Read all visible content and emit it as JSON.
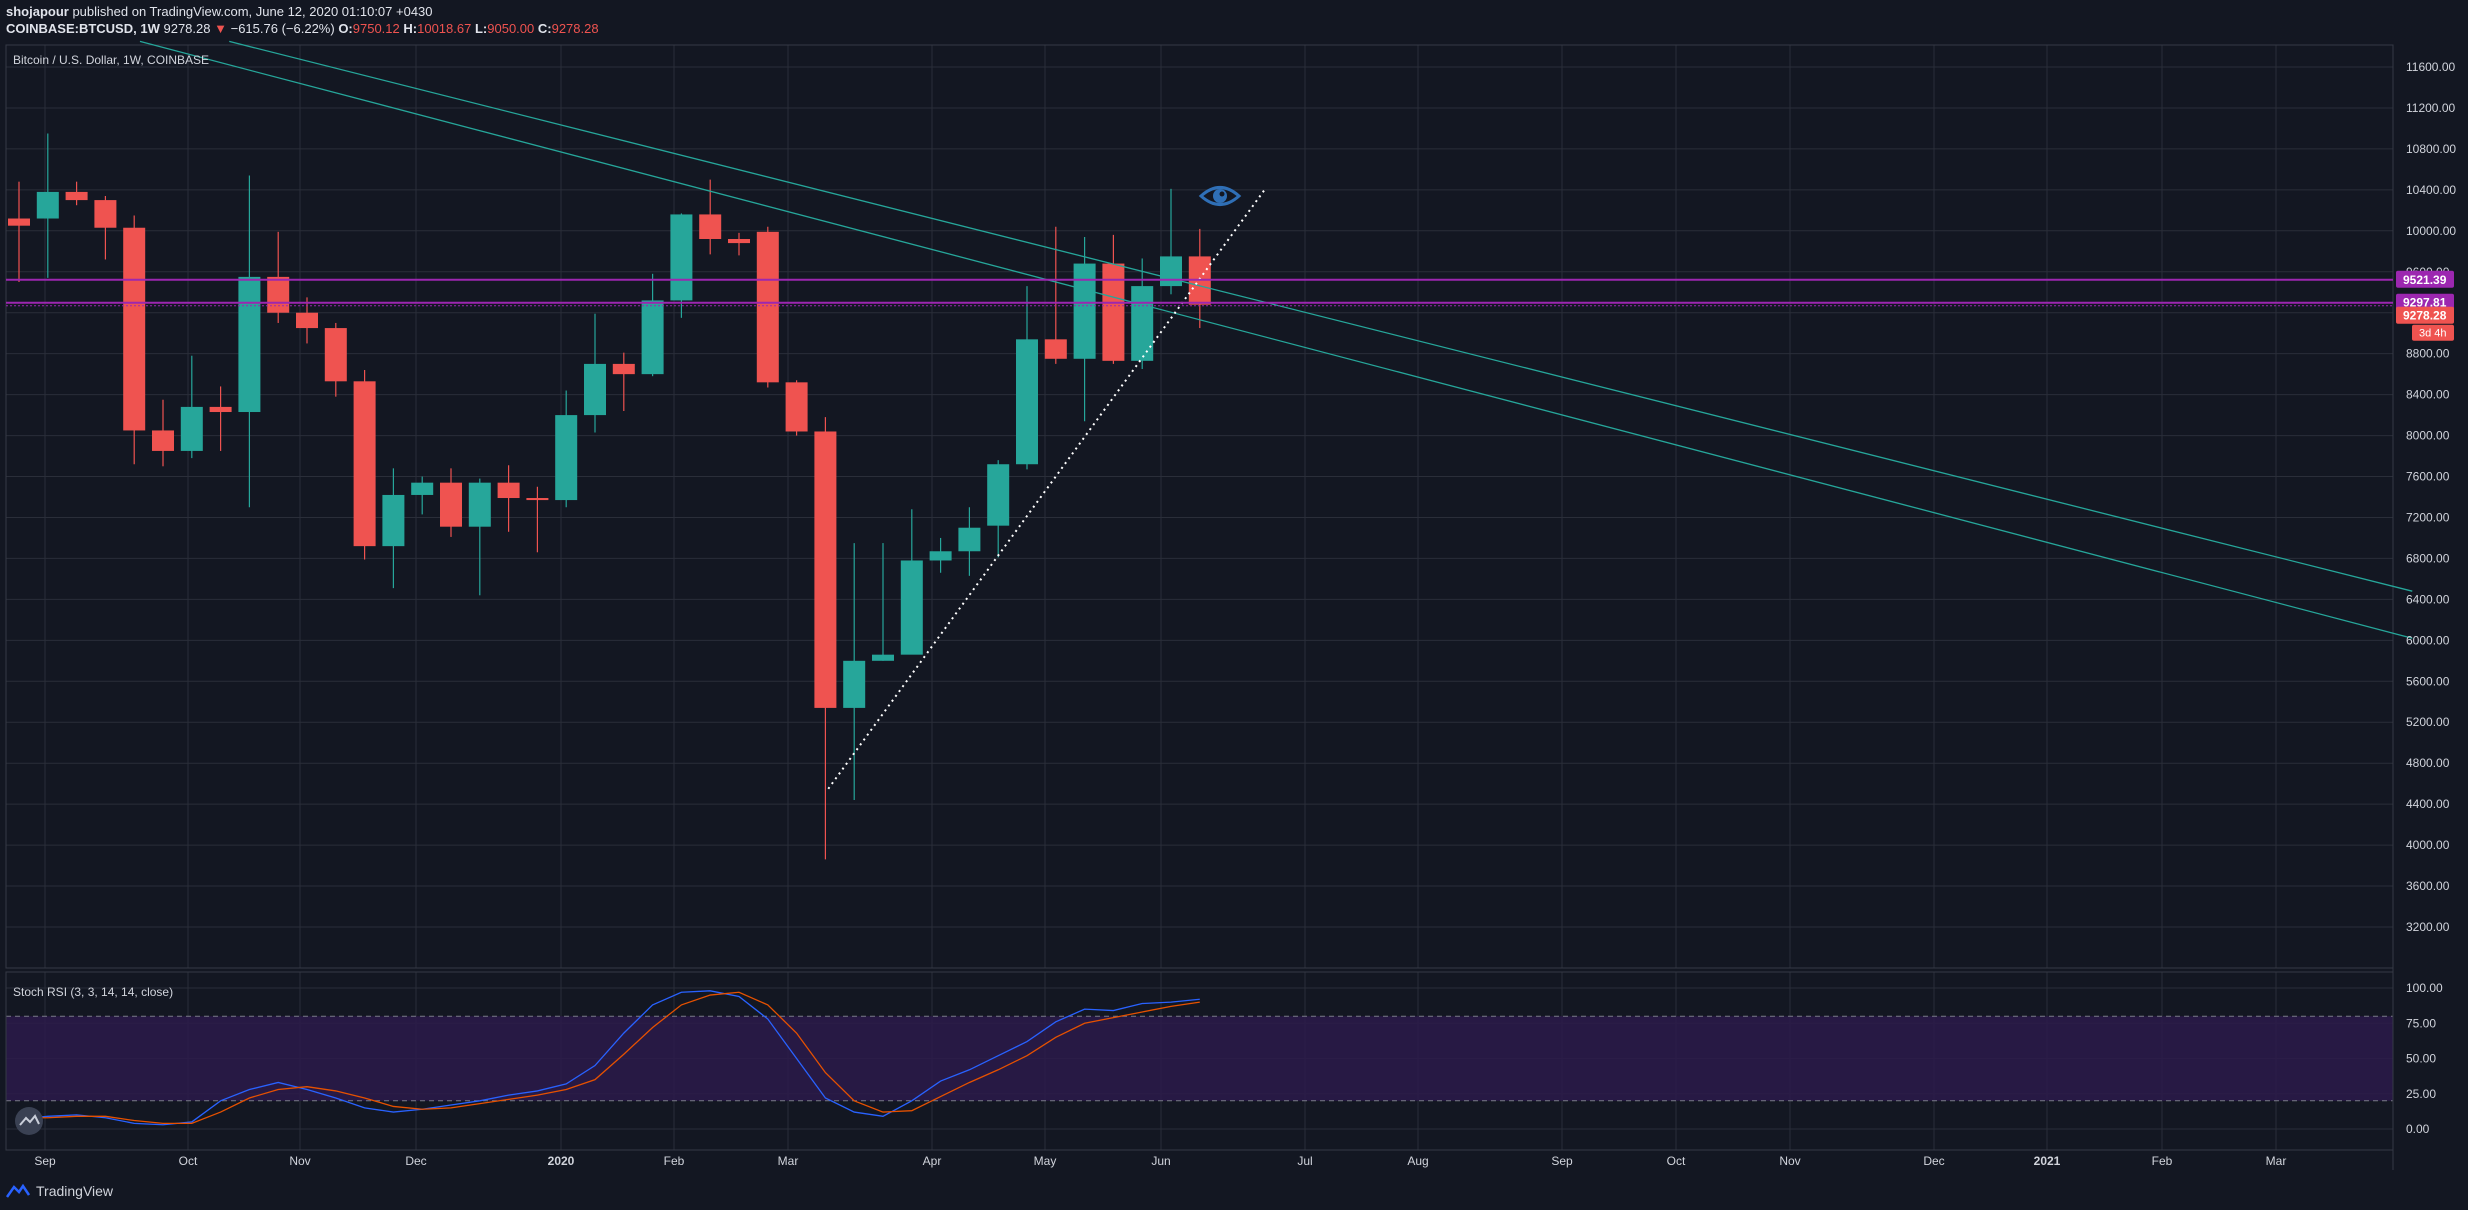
{
  "header": {
    "author": "shojapour",
    "published_text": " published on TradingView.com, June 12, 2020 01:10:07 +0430",
    "symbol": "COINBASE:BTCUSD",
    "interval": ", 1W",
    "last": "9278.28",
    "change_arrow": "▼",
    "change": "−615.76 (−6.22%)",
    "o_label": "O:",
    "o_value": "9750.12",
    "h_label": "H:",
    "h_value": "10018.67",
    "l_label": "L:",
    "l_value": "9050.00",
    "c_label": "C:",
    "c_value": "9278.28"
  },
  "footer": {
    "brand": "TradingView"
  },
  "colors": {
    "background": "#131722",
    "grid": "#2a2e39",
    "bull": "#26a69a",
    "bear": "#ef5350",
    "trendline": "#26a69a",
    "level": "#9c27b0",
    "rsi_k": "#2962ff",
    "rsi_d": "#e65100",
    "rsi_band": "#2b1a4a",
    "axis_text": "#d1d4dc"
  },
  "chart_data": [
    {
      "type": "candlestick",
      "title": "Bitcoin / U.S. Dollar, 1W, COINBASE",
      "x_labels": [
        "Sep",
        "Oct",
        "Nov",
        "Dec",
        "2020",
        "Feb",
        "Mar",
        "Apr",
        "May",
        "Jun",
        "Jul",
        "Aug",
        "Sep",
        "Oct",
        "Nov",
        "Dec",
        "2021",
        "Feb",
        "Mar"
      ],
      "y_ticks": [
        3200,
        3600,
        4000,
        4400,
        4800,
        5200,
        5600,
        6000,
        6400,
        6800,
        7200,
        7600,
        8000,
        8400,
        8800,
        9200,
        9600,
        10000,
        10400,
        10800,
        11200,
        11600
      ],
      "ylim": [
        3150,
        11750
      ],
      "candles": [
        {
          "o": 10120,
          "h": 10480,
          "l": 9500,
          "c": 10050
        },
        {
          "o": 10120,
          "h": 10950,
          "l": 9540,
          "c": 10380
        },
        {
          "o": 10380,
          "h": 10480,
          "l": 10250,
          "c": 10300
        },
        {
          "o": 10300,
          "h": 10340,
          "l": 9720,
          "c": 10030
        },
        {
          "o": 10030,
          "h": 10150,
          "l": 7720,
          "c": 8050
        },
        {
          "o": 8050,
          "h": 8350,
          "l": 7700,
          "c": 7850
        },
        {
          "o": 7850,
          "h": 8780,
          "l": 7780,
          "c": 8280
        },
        {
          "o": 8280,
          "h": 8480,
          "l": 7850,
          "c": 8230
        },
        {
          "o": 8230,
          "h": 10540,
          "l": 7300,
          "c": 9550
        },
        {
          "o": 9550,
          "h": 9990,
          "l": 9100,
          "c": 9200
        },
        {
          "o": 9200,
          "h": 9350,
          "l": 8900,
          "c": 9050
        },
        {
          "o": 9050,
          "h": 9100,
          "l": 8380,
          "c": 8530
        },
        {
          "o": 8530,
          "h": 8640,
          "l": 6790,
          "c": 6920
        },
        {
          "o": 6920,
          "h": 7680,
          "l": 6510,
          "c": 7420
        },
        {
          "o": 7420,
          "h": 7600,
          "l": 7230,
          "c": 7540
        },
        {
          "o": 7540,
          "h": 7680,
          "l": 7010,
          "c": 7110
        },
        {
          "o": 7110,
          "h": 7580,
          "l": 6440,
          "c": 7540
        },
        {
          "o": 7540,
          "h": 7710,
          "l": 7060,
          "c": 7390
        },
        {
          "o": 7390,
          "h": 7500,
          "l": 6860,
          "c": 7370
        },
        {
          "o": 7370,
          "h": 8440,
          "l": 7300,
          "c": 8200
        },
        {
          "o": 8200,
          "h": 9190,
          "l": 8030,
          "c": 8700
        },
        {
          "o": 8700,
          "h": 8810,
          "l": 8240,
          "c": 8600
        },
        {
          "o": 8600,
          "h": 9580,
          "l": 8580,
          "c": 9320
        },
        {
          "o": 9320,
          "h": 10170,
          "l": 9150,
          "c": 10160
        },
        {
          "o": 10160,
          "h": 10500,
          "l": 9770,
          "c": 9920
        },
        {
          "o": 9920,
          "h": 9980,
          "l": 9760,
          "c": 9880
        },
        {
          "o": 9990,
          "h": 10040,
          "l": 8470,
          "c": 8520
        },
        {
          "o": 8520,
          "h": 8540,
          "l": 8000,
          "c": 8040
        },
        {
          "o": 8040,
          "h": 8180,
          "l": 3860,
          "c": 5340
        },
        {
          "o": 5340,
          "h": 6950,
          "l": 4440,
          "c": 5800
        },
        {
          "o": 5800,
          "h": 6950,
          "l": 5800,
          "c": 5860
        },
        {
          "o": 5860,
          "h": 7280,
          "l": 5890,
          "c": 6780
        },
        {
          "o": 6780,
          "h": 7000,
          "l": 6660,
          "c": 6870
        },
        {
          "o": 6870,
          "h": 7300,
          "l": 6630,
          "c": 7100
        },
        {
          "o": 7120,
          "h": 7760,
          "l": 6810,
          "c": 7720
        },
        {
          "o": 7720,
          "h": 9460,
          "l": 7670,
          "c": 8940
        },
        {
          "o": 8940,
          "h": 10040,
          "l": 8700,
          "c": 8750
        },
        {
          "o": 8750,
          "h": 9940,
          "l": 8140,
          "c": 9680
        },
        {
          "o": 9680,
          "h": 9960,
          "l": 8700,
          "c": 8730
        },
        {
          "o": 8730,
          "h": 9730,
          "l": 8650,
          "c": 9460
        },
        {
          "o": 9460,
          "h": 10410,
          "l": 9380,
          "c": 9750
        },
        {
          "o": 9750,
          "h": 10018.67,
          "l": 9050,
          "c": 9278.28
        }
      ],
      "trendlines": [
        {
          "name": "upper-resistance",
          "from": {
            "bar": 7.3,
            "price": 11850
          },
          "to": {
            "bar": 83.1,
            "price": 6480
          }
        },
        {
          "name": "lower-resistance",
          "from": {
            "bar": 4.2,
            "price": 11850
          },
          "to": {
            "bar": 83.1,
            "price": 6020
          }
        },
        {
          "name": "rising-support",
          "from": {
            "bar": 28.1,
            "price": 4550
          },
          "to": {
            "bar": 43.3,
            "price": 10420
          }
        }
      ],
      "levels": [
        {
          "price": 9521.39,
          "label": "9521.39",
          "color": "#9c27b0"
        },
        {
          "price": 9297.81,
          "label": "9297.81",
          "color": "#9c27b0"
        },
        {
          "price": 9278.28,
          "label": "9278.28",
          "color": "#ef5350"
        }
      ],
      "countdown": "3d 4h"
    },
    {
      "type": "line",
      "title": "Stoch RSI (3, 3, 14, 14, close)",
      "y_ticks": [
        0,
        25,
        50,
        75,
        100
      ],
      "ylim": [
        -8,
        104
      ],
      "bands": [
        20,
        80
      ],
      "series": [
        {
          "name": "K",
          "values": [
            7,
            9,
            10,
            8,
            4,
            3,
            5,
            20,
            28,
            33,
            28,
            22,
            15,
            12,
            14,
            17,
            20,
            24,
            27,
            32,
            45,
            68,
            88,
            97,
            98,
            94,
            78,
            50,
            22,
            12,
            9,
            20,
            34,
            42,
            52,
            62,
            76,
            85,
            84,
            89,
            90,
            92
          ]
        },
        {
          "name": "D",
          "values": [
            8,
            8,
            9,
            9,
            6,
            4,
            4,
            12,
            22,
            28,
            30,
            27,
            22,
            16,
            14,
            15,
            18,
            21,
            24,
            28,
            35,
            53,
            72,
            88,
            95,
            97,
            88,
            68,
            40,
            20,
            12,
            13,
            23,
            33,
            42,
            52,
            65,
            75,
            79,
            83,
            87,
            90
          ]
        }
      ]
    }
  ]
}
